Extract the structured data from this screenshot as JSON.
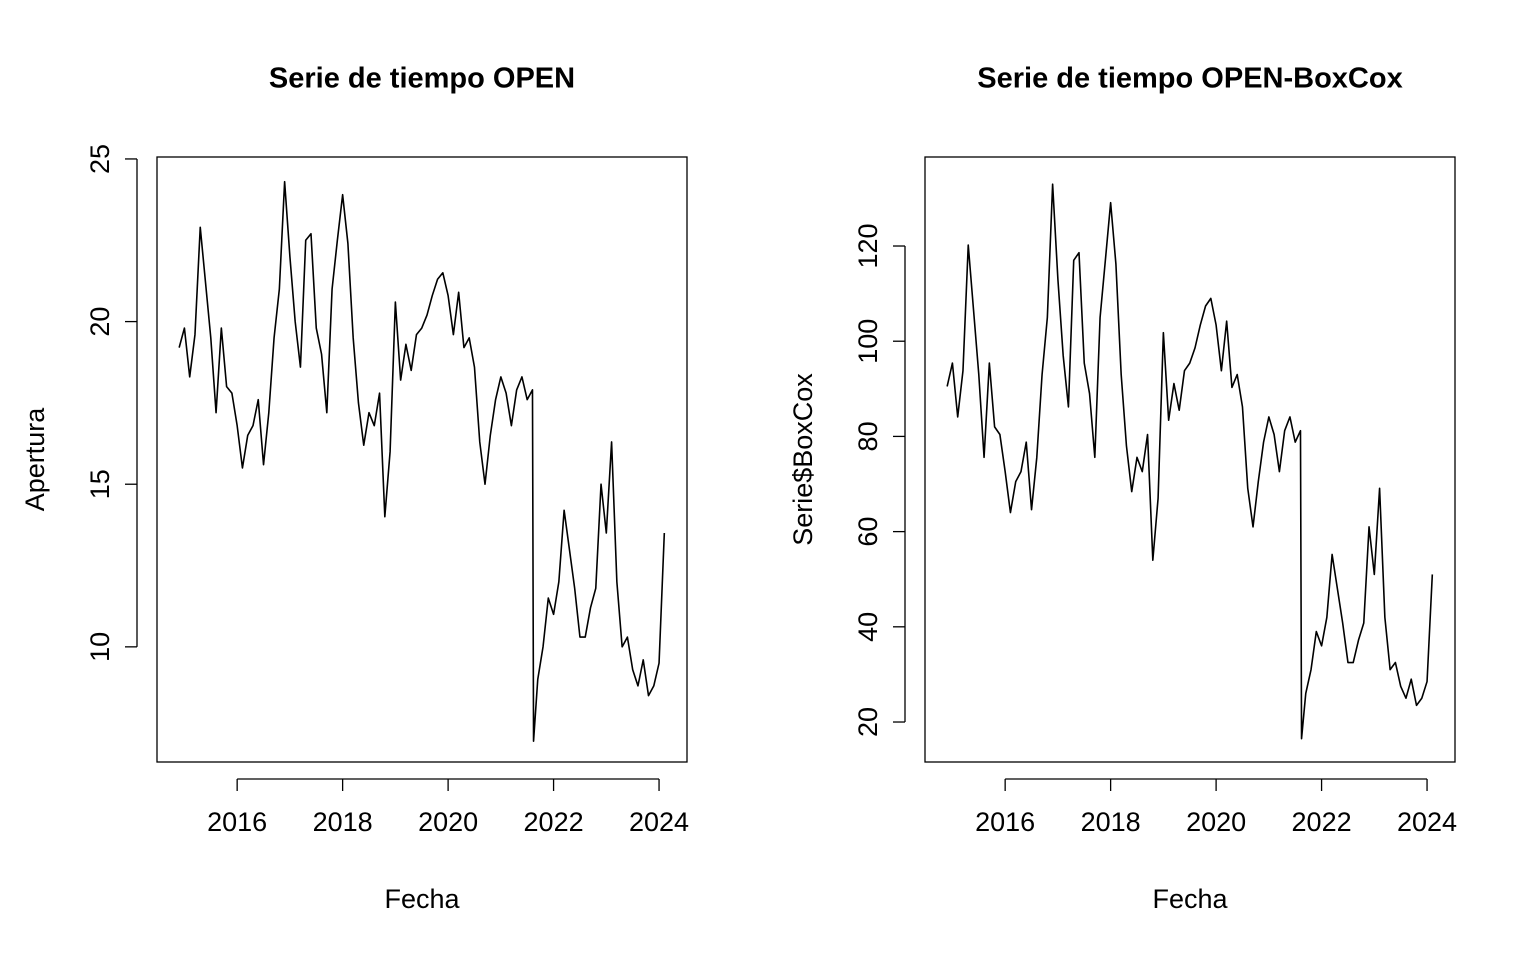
{
  "chart_data": [
    {
      "type": "line",
      "title": "Serie de tiempo OPEN",
      "x_label": "Fecha",
      "y_label": "Apertura",
      "xlim": [
        2014.48,
        2024.53
      ],
      "ylim": [
        6.46,
        25.06
      ],
      "xticks": [
        2016,
        2018,
        2020,
        2022,
        2024
      ],
      "yticks": [
        10,
        15,
        20,
        25
      ],
      "x": [
        2014.9,
        2015.0,
        2015.1,
        2015.2,
        2015.3,
        2015.4,
        2015.5,
        2015.6,
        2015.7,
        2015.8,
        2015.9,
        2016.0,
        2016.1,
        2016.2,
        2016.3,
        2016.4,
        2016.5,
        2016.6,
        2016.7,
        2016.8,
        2016.9,
        2017.0,
        2017.1,
        2017.2,
        2017.3,
        2017.4,
        2017.5,
        2017.6,
        2017.7,
        2017.8,
        2017.9,
        2018.0,
        2018.1,
        2018.2,
        2018.3,
        2018.4,
        2018.5,
        2018.6,
        2018.7,
        2018.8,
        2018.9,
        2019.0,
        2019.1,
        2019.2,
        2019.3,
        2019.4,
        2019.5,
        2019.6,
        2019.7,
        2019.8,
        2019.9,
        2020.0,
        2020.1,
        2020.2,
        2020.3,
        2020.4,
        2020.5,
        2020.6,
        2020.7,
        2020.8,
        2020.9,
        2021.0,
        2021.1,
        2021.2,
        2021.3,
        2021.4,
        2021.5,
        2021.6,
        2021.62,
        2021.7,
        2021.8,
        2021.9,
        2022.0,
        2022.1,
        2022.2,
        2022.3,
        2022.4,
        2022.5,
        2022.6,
        2022.7,
        2022.8,
        2022.9,
        2023.0,
        2023.1,
        2023.2,
        2023.3,
        2023.4,
        2023.5,
        2023.6,
        2023.7,
        2023.8,
        2023.9,
        2024.0,
        2024.1
      ],
      "series": [
        {
          "color": "#000000",
          "values": [
            19.2,
            19.8,
            18.3,
            19.6,
            22.9,
            21.2,
            19.5,
            17.2,
            19.8,
            18.0,
            17.8,
            16.8,
            15.5,
            16.5,
            16.8,
            17.6,
            15.6,
            17.2,
            19.5,
            21.0,
            24.3,
            22.0,
            20.0,
            18.6,
            22.5,
            22.7,
            19.8,
            19.0,
            17.2,
            21.0,
            22.5,
            23.9,
            22.4,
            19.5,
            17.5,
            16.2,
            17.2,
            16.8,
            17.8,
            14.0,
            16.0,
            20.6,
            18.2,
            19.3,
            18.5,
            19.6,
            19.8,
            20.2,
            20.8,
            21.3,
            21.5,
            20.8,
            19.6,
            20.9,
            19.2,
            19.5,
            18.6,
            16.3,
            15.0,
            16.5,
            17.6,
            18.3,
            17.8,
            16.8,
            17.9,
            18.3,
            17.6,
            17.9,
            7.1,
            9.0,
            10.0,
            11.5,
            11.0,
            12.0,
            14.2,
            13.0,
            11.8,
            10.3,
            10.3,
            11.2,
            11.8,
            15.0,
            13.5,
            16.3,
            12.0,
            10.0,
            10.3,
            9.3,
            8.8,
            9.6,
            8.5,
            8.8,
            9.5,
            13.5
          ]
        }
      ]
    },
    {
      "type": "line",
      "title": "Serie de tiempo OPEN-BoxCox",
      "x_label": "Fecha",
      "y_label": "Serie$BoxCox",
      "xlim": [
        2014.48,
        2024.53
      ],
      "ylim": [
        11.6,
        138.7
      ],
      "xticks": [
        2016,
        2018,
        2020,
        2022,
        2024
      ],
      "yticks": [
        20,
        40,
        60,
        80,
        100,
        120
      ],
      "x": [
        2014.9,
        2015.0,
        2015.1,
        2015.2,
        2015.3,
        2015.4,
        2015.5,
        2015.6,
        2015.7,
        2015.8,
        2015.9,
        2016.0,
        2016.1,
        2016.2,
        2016.3,
        2016.4,
        2016.5,
        2016.6,
        2016.7,
        2016.8,
        2016.9,
        2017.0,
        2017.1,
        2017.2,
        2017.3,
        2017.4,
        2017.5,
        2017.6,
        2017.7,
        2017.8,
        2017.9,
        2018.0,
        2018.1,
        2018.2,
        2018.3,
        2018.4,
        2018.5,
        2018.6,
        2018.7,
        2018.8,
        2018.9,
        2019.0,
        2019.1,
        2019.2,
        2019.3,
        2019.4,
        2019.5,
        2019.6,
        2019.7,
        2019.8,
        2019.9,
        2020.0,
        2020.1,
        2020.2,
        2020.3,
        2020.4,
        2020.5,
        2020.6,
        2020.7,
        2020.8,
        2020.9,
        2021.0,
        2021.1,
        2021.2,
        2021.3,
        2021.4,
        2021.5,
        2021.6,
        2021.62,
        2021.7,
        2021.8,
        2021.9,
        2022.0,
        2022.1,
        2022.2,
        2022.3,
        2022.4,
        2022.5,
        2022.6,
        2022.7,
        2022.8,
        2022.9,
        2023.0,
        2023.1,
        2023.2,
        2023.3,
        2023.4,
        2023.5,
        2023.6,
        2023.7,
        2023.8,
        2023.9,
        2024.0,
        2024.1
      ],
      "series": [
        {
          "color": "#000000",
          "values": [
            90.5,
            95.4,
            84.1,
            93.8,
            120.2,
            106.6,
            93,
            75.6,
            95.4,
            82,
            80.4,
            72.6,
            64,
            70.5,
            72.6,
            78.8,
            64.6,
            75.6,
            93,
            105,
            133,
            113,
            97,
            86.2,
            117,
            118.6,
            95.4,
            89,
            75.6,
            105,
            117,
            129.1,
            116.2,
            93,
            78,
            68.4,
            75.6,
            72.6,
            80.4,
            54,
            67,
            101.8,
            83.4,
            91.1,
            85.5,
            93.8,
            95.4,
            98.6,
            103.4,
            107.4,
            109,
            103.4,
            93.8,
            104.2,
            90.3,
            93,
            86.2,
            69.1,
            61,
            70.5,
            78.8,
            84.1,
            80.4,
            72.6,
            81.2,
            84.1,
            78.8,
            81.2,
            16.5,
            26,
            31,
            39,
            36,
            42,
            55.2,
            48,
            40.8,
            32.5,
            32.5,
            37.2,
            40.8,
            61,
            51,
            69.1,
            42,
            31,
            32.5,
            27.5,
            25,
            29,
            23.5,
            25,
            28.5,
            51
          ]
        }
      ]
    }
  ]
}
